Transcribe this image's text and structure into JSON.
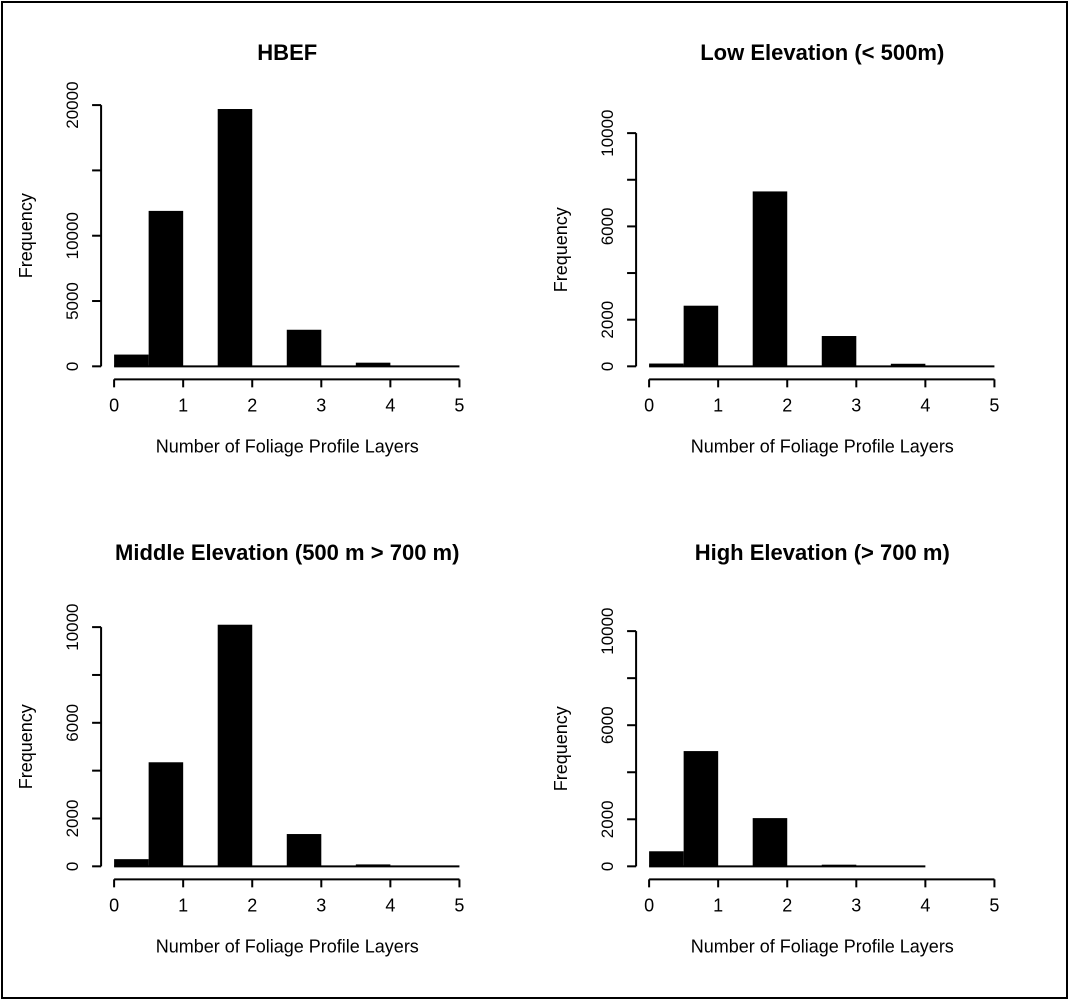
{
  "figure": {
    "background_color": "#ffffff",
    "frame_color": "#000000",
    "bar_color": "#000000",
    "axis_color": "#000000",
    "text_color": "#000000"
  },
  "chart_data": [
    {
      "type": "bar",
      "title": "HBEF",
      "xlabel": "Number of Foliage Profile Layers",
      "ylabel": "Frequency",
      "xlim": [
        0,
        5
      ],
      "ylim": [
        0,
        20000
      ],
      "grid": "off",
      "x_ticks": [
        "0",
        "1",
        "2",
        "3",
        "4",
        "5"
      ],
      "y_ticks": [
        {
          "value": 0,
          "label": "0"
        },
        {
          "value": 5000,
          "label": "5000"
        },
        {
          "value": 10000,
          "label": "10000"
        },
        {
          "value": 15000,
          "label": ""
        },
        {
          "value": 20000,
          "label": "20000"
        }
      ],
      "bin_width": 0.5,
      "baseline_extent": [
        0,
        5
      ],
      "bars": [
        {
          "from": 0.0,
          "to": 0.5,
          "value": 900
        },
        {
          "from": 0.5,
          "to": 1.0,
          "value": 11900
        },
        {
          "from": 1.5,
          "to": 2.0,
          "value": 19700
        },
        {
          "from": 2.5,
          "to": 3.0,
          "value": 2800
        },
        {
          "from": 3.5,
          "to": 4.0,
          "value": 280
        }
      ]
    },
    {
      "type": "bar",
      "title": "Low Elevation (< 500m)",
      "xlabel": "Number of Foliage Profile Layers",
      "ylabel": "Frequency",
      "xlim": [
        0,
        5
      ],
      "ylim": [
        0,
        10000
      ],
      "grid": "off",
      "x_ticks": [
        "0",
        "1",
        "2",
        "3",
        "4",
        "5"
      ],
      "y_ticks": [
        {
          "value": 0,
          "label": "0"
        },
        {
          "value": 2000,
          "label": "2000"
        },
        {
          "value": 4000,
          "label": ""
        },
        {
          "value": 6000,
          "label": "6000"
        },
        {
          "value": 8000,
          "label": ""
        },
        {
          "value": 10000,
          "label": "10000"
        }
      ],
      "bin_width": 0.5,
      "baseline_extent": [
        0,
        5
      ],
      "bars": [
        {
          "from": 0.0,
          "to": 0.5,
          "value": 120
        },
        {
          "from": 0.5,
          "to": 1.0,
          "value": 2600
        },
        {
          "from": 1.5,
          "to": 2.0,
          "value": 7500
        },
        {
          "from": 2.5,
          "to": 3.0,
          "value": 1300
        },
        {
          "from": 3.5,
          "to": 4.0,
          "value": 110
        }
      ]
    },
    {
      "type": "bar",
      "title": "Middle Elevation (500 m > 700 m)",
      "xlabel": "Number of Foliage Profile Layers",
      "ylabel": "Frequency",
      "xlim": [
        0,
        5
      ],
      "ylim": [
        0,
        10000
      ],
      "grid": "off",
      "x_ticks": [
        "0",
        "1",
        "2",
        "3",
        "4",
        "5"
      ],
      "y_ticks": [
        {
          "value": 0,
          "label": "0"
        },
        {
          "value": 2000,
          "label": "2000"
        },
        {
          "value": 4000,
          "label": ""
        },
        {
          "value": 6000,
          "label": "6000"
        },
        {
          "value": 8000,
          "label": ""
        },
        {
          "value": 10000,
          "label": "10000"
        }
      ],
      "bin_width": 0.5,
      "baseline_extent": [
        0,
        5
      ],
      "bars": [
        {
          "from": 0.0,
          "to": 0.5,
          "value": 300
        },
        {
          "from": 0.5,
          "to": 1.0,
          "value": 4350
        },
        {
          "from": 1.5,
          "to": 2.0,
          "value": 10100
        },
        {
          "from": 2.5,
          "to": 3.0,
          "value": 1350
        },
        {
          "from": 3.5,
          "to": 4.0,
          "value": 80
        }
      ]
    },
    {
      "type": "bar",
      "title": "High Elevation (> 700 m)",
      "xlabel": "Number of Foliage Profile Layers",
      "ylabel": "Frequency",
      "xlim": [
        0,
        5
      ],
      "ylim": [
        0,
        10000
      ],
      "grid": "off",
      "x_ticks": [
        "0",
        "1",
        "2",
        "3",
        "4",
        "5"
      ],
      "y_ticks": [
        {
          "value": 0,
          "label": "0"
        },
        {
          "value": 2000,
          "label": "2000"
        },
        {
          "value": 4000,
          "label": ""
        },
        {
          "value": 6000,
          "label": "6000"
        },
        {
          "value": 8000,
          "label": ""
        },
        {
          "value": 10000,
          "label": "10000"
        }
      ],
      "bin_width": 0.5,
      "baseline_extent": [
        0,
        4
      ],
      "bars": [
        {
          "from": 0.0,
          "to": 0.5,
          "value": 640
        },
        {
          "from": 0.5,
          "to": 1.0,
          "value": 4900
        },
        {
          "from": 1.5,
          "to": 2.0,
          "value": 2050
        },
        {
          "from": 2.5,
          "to": 3.0,
          "value": 70
        }
      ]
    }
  ]
}
